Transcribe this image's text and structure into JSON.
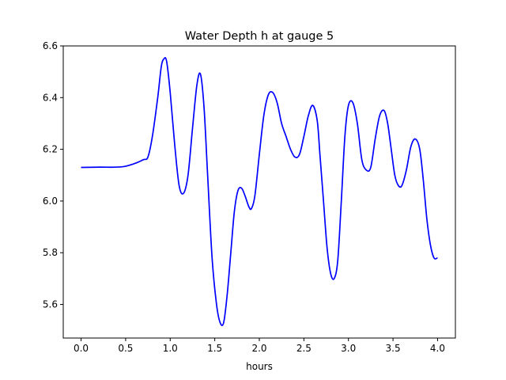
{
  "chart_data": {
    "type": "line",
    "title": "Water Depth h at gauge 5",
    "xlabel": "hours",
    "ylabel": "",
    "xlim": [
      -0.2,
      4.2
    ],
    "ylim": [
      5.47,
      6.6
    ],
    "x_ticks": [
      0.0,
      0.5,
      1.0,
      1.5,
      2.0,
      2.5,
      3.0,
      3.5,
      4.0
    ],
    "x_tick_labels": [
      "0.0",
      "0.5",
      "1.0",
      "1.5",
      "2.0",
      "2.5",
      "3.0",
      "3.5",
      "4.0"
    ],
    "y_ticks": [
      5.6,
      5.8,
      6.0,
      6.2,
      6.4,
      6.6
    ],
    "y_tick_labels": [
      "5.6",
      "5.8",
      "6.0",
      "6.2",
      "6.4",
      "6.6"
    ],
    "grid": false,
    "legend": "none",
    "series": [
      {
        "color": "#0000ff",
        "x": [
          0.0,
          0.2,
          0.45,
          0.6,
          0.7,
          0.75,
          0.8,
          0.86,
          0.9,
          0.93,
          0.96,
          1.0,
          1.05,
          1.1,
          1.15,
          1.2,
          1.25,
          1.3,
          1.34,
          1.38,
          1.42,
          1.47,
          1.52,
          1.56,
          1.6,
          1.64,
          1.68,
          1.72,
          1.76,
          1.8,
          1.84,
          1.88,
          1.91,
          1.95,
          2.0,
          2.05,
          2.1,
          2.15,
          2.2,
          2.25,
          2.3,
          2.35,
          2.4,
          2.45,
          2.5,
          2.55,
          2.6,
          2.65,
          2.68,
          2.72,
          2.76,
          2.8,
          2.84,
          2.88,
          2.92,
          2.96,
          3.0,
          3.05,
          3.1,
          3.15,
          3.2,
          3.25,
          3.3,
          3.35,
          3.4,
          3.44,
          3.48,
          3.52,
          3.56,
          3.6,
          3.65,
          3.7,
          3.75,
          3.8,
          3.84,
          3.88,
          3.92,
          3.96,
          4.0
        ],
        "y": [
          6.13,
          6.131,
          6.132,
          6.145,
          6.16,
          6.17,
          6.25,
          6.4,
          6.52,
          6.55,
          6.54,
          6.42,
          6.22,
          6.06,
          6.03,
          6.1,
          6.28,
          6.45,
          6.49,
          6.36,
          6.1,
          5.78,
          5.6,
          5.53,
          5.53,
          5.64,
          5.8,
          5.96,
          6.04,
          6.05,
          6.02,
          5.98,
          5.97,
          6.02,
          6.18,
          6.33,
          6.41,
          6.42,
          6.38,
          6.3,
          6.25,
          6.2,
          6.17,
          6.18,
          6.25,
          6.33,
          6.37,
          6.31,
          6.18,
          6.0,
          5.82,
          5.72,
          5.7,
          5.77,
          6.0,
          6.25,
          6.37,
          6.38,
          6.3,
          6.16,
          6.12,
          6.13,
          6.24,
          6.33,
          6.35,
          6.3,
          6.2,
          6.1,
          6.06,
          6.06,
          6.12,
          6.21,
          6.24,
          6.2,
          6.08,
          5.93,
          5.83,
          5.78,
          5.78
        ]
      }
    ]
  }
}
